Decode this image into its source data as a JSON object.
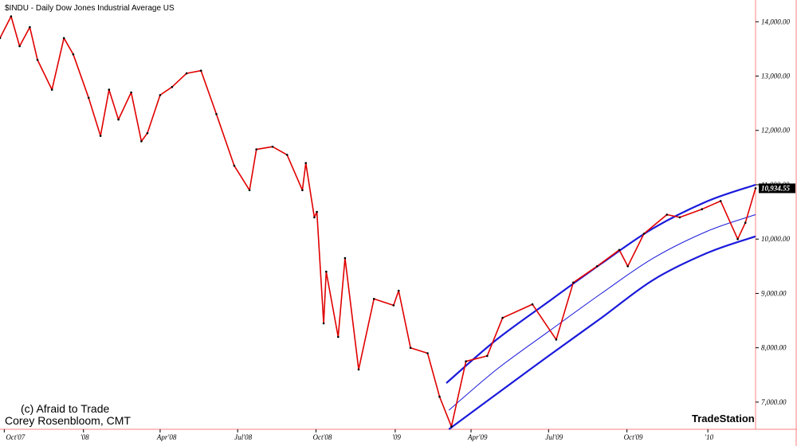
{
  "chart_data": {
    "type": "line",
    "title": "$INDU - Daily  Dow Jones Industrial Average  US",
    "y_ticks": [
      "14,000.00",
      "13,000.00",
      "12,000.00",
      "11,000.00",
      "10,000.00",
      "9,000.00",
      "8,000.00",
      "7,000.00"
    ],
    "y_tick_values": [
      14000,
      13000,
      12000,
      11000,
      10000,
      9000,
      8000,
      7000
    ],
    "x_ticks": [
      "Oct'07",
      "'08",
      "Apr'08",
      "Jul'08",
      "Oct'08",
      "'09",
      "Apr'09",
      "Jul'09",
      "Oct'09",
      "'10"
    ],
    "x_tick_dates": [
      "2007-10-01",
      "2008-01-02",
      "2008-04-01",
      "2008-07-01",
      "2008-10-01",
      "2009-01-02",
      "2009-04-01",
      "2009-07-01",
      "2009-10-01",
      "2010-01-04"
    ],
    "ylim": [
      6500,
      14400
    ],
    "xlim": [
      "2007-09-26",
      "2010-03-01"
    ],
    "grid": false,
    "last_price_label": "10,934.55",
    "last_price": 10934.55,
    "series": [
      {
        "kind": "price",
        "color": "#e00000",
        "x": [
          "2007-09-26",
          "2007-10-09",
          "2007-10-19",
          "2007-10-31",
          "2007-11-09",
          "2007-11-26",
          "2007-12-10",
          "2007-12-21",
          "2008-01-08",
          "2008-01-22",
          "2008-02-01",
          "2008-02-12",
          "2008-02-27",
          "2008-03-10",
          "2008-03-17",
          "2008-04-01",
          "2008-04-15",
          "2008-05-02",
          "2008-05-19",
          "2008-06-06",
          "2008-06-27",
          "2008-07-15",
          "2008-07-23",
          "2008-08-11",
          "2008-08-28",
          "2008-09-15",
          "2008-09-19",
          "2008-09-29",
          "2008-10-02",
          "2008-10-10",
          "2008-10-13",
          "2008-10-27",
          "2008-11-04",
          "2008-11-20",
          "2008-12-08",
          "2008-12-31",
          "2009-01-06",
          "2009-01-20",
          "2009-02-09",
          "2009-02-23",
          "2009-03-09",
          "2009-03-26",
          "2009-04-20",
          "2009-05-08",
          "2009-06-12",
          "2009-07-10",
          "2009-07-30",
          "2009-08-27",
          "2009-09-22",
          "2009-10-02",
          "2009-10-21",
          "2009-11-17",
          "2009-12-02",
          "2009-12-28",
          "2010-01-19",
          "2010-02-08",
          "2010-02-17",
          "2010-03-01"
        ],
        "values": [
          13700,
          14100,
          13550,
          13900,
          13300,
          12750,
          13700,
          13400,
          12600,
          11900,
          12750,
          12200,
          12700,
          11800,
          11950,
          12650,
          12800,
          13050,
          13100,
          12300,
          11350,
          10900,
          11650,
          11700,
          11550,
          10900,
          11400,
          10400,
          10500,
          8450,
          9400,
          8200,
          9650,
          7600,
          8900,
          8780,
          9050,
          8000,
          7900,
          7100,
          6550,
          7750,
          7850,
          8550,
          8800,
          8150,
          9200,
          9500,
          9800,
          9500,
          10100,
          10450,
          10400,
          10550,
          10700,
          10000,
          10300,
          10934.55
        ]
      },
      {
        "kind": "upper-arc",
        "color": "#1a1adb",
        "x": [
          "2009-03-03",
          "2009-05-01",
          "2009-07-01",
          "2009-09-01",
          "2009-11-01",
          "2010-01-04",
          "2010-03-01"
        ],
        "values": [
          7350,
          8150,
          8850,
          9550,
          10200,
          10700,
          11000
        ]
      },
      {
        "kind": "middle-arc",
        "color": "#1a1adb",
        "x": [
          "2009-03-06",
          "2009-05-01",
          "2009-07-01",
          "2009-09-01",
          "2009-11-01",
          "2010-01-04",
          "2010-03-01"
        ],
        "values": [
          6850,
          7600,
          8300,
          9000,
          9650,
          10150,
          10450
        ]
      },
      {
        "kind": "lower-arc",
        "color": "#1a1adb",
        "x": [
          "2009-03-06",
          "2009-05-01",
          "2009-07-01",
          "2009-09-01",
          "2009-11-01",
          "2010-01-04",
          "2010-03-01"
        ],
        "values": [
          6500,
          7150,
          7850,
          8550,
          9250,
          9750,
          10050
        ]
      }
    ]
  },
  "credit": {
    "line1": "(c) Afraid to Trade",
    "line2": "Corey Rosenbloom, CMT"
  },
  "brand": "TradeStation"
}
